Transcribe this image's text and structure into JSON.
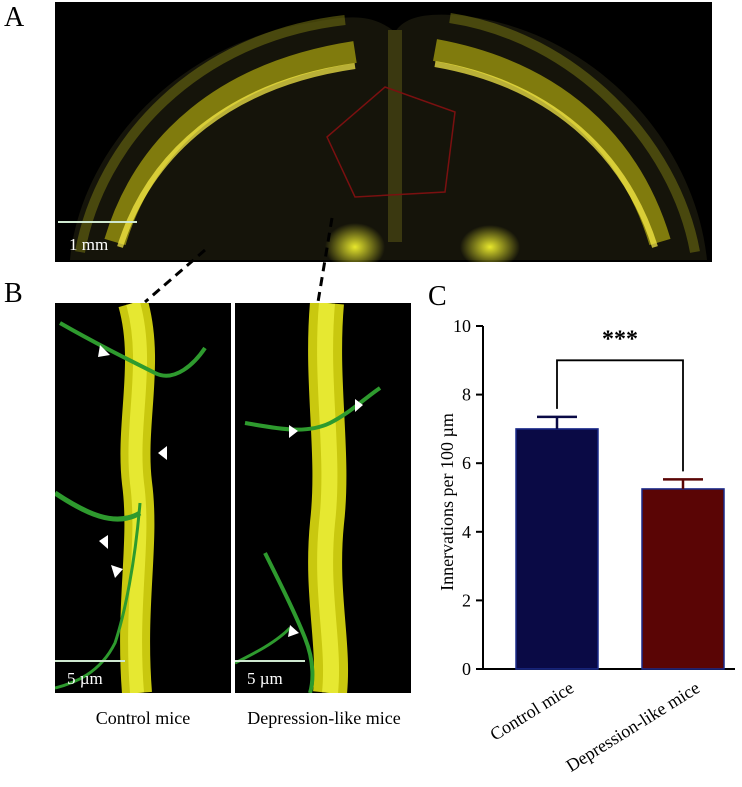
{
  "panels": {
    "a": {
      "letter": "A",
      "scale_label": "1 mm"
    },
    "b": {
      "letter": "B",
      "left_scale_label": "5 µm",
      "right_scale_label": "5 µm",
      "left_caption": "Control mice",
      "right_caption": "Depression-like mice",
      "arrowhead_color": "#ffffff"
    },
    "c": {
      "letter": "C"
    }
  },
  "colors": {
    "fluorescence_yellow": "#e8e000",
    "fluorescence_green": "#2e9a2e",
    "control_bar": "#0a0a45",
    "depression_bar": "#5a0505",
    "bar_outline": "#1a2a8a"
  },
  "chart_data": {
    "type": "bar",
    "categories": [
      "Control mice",
      "Depression-like mice"
    ],
    "values": [
      7.0,
      5.25
    ],
    "errors": [
      0.35,
      0.28
    ],
    "bar_colors": [
      "#0a0a45",
      "#5a0505"
    ],
    "ylabel": "Innervations per 100 µm",
    "xlabel": "",
    "ylim": [
      0,
      10
    ],
    "yticks": [
      0,
      2,
      4,
      6,
      8,
      10
    ],
    "significance": {
      "between": [
        0,
        1
      ],
      "label": "***"
    },
    "grid": false
  }
}
